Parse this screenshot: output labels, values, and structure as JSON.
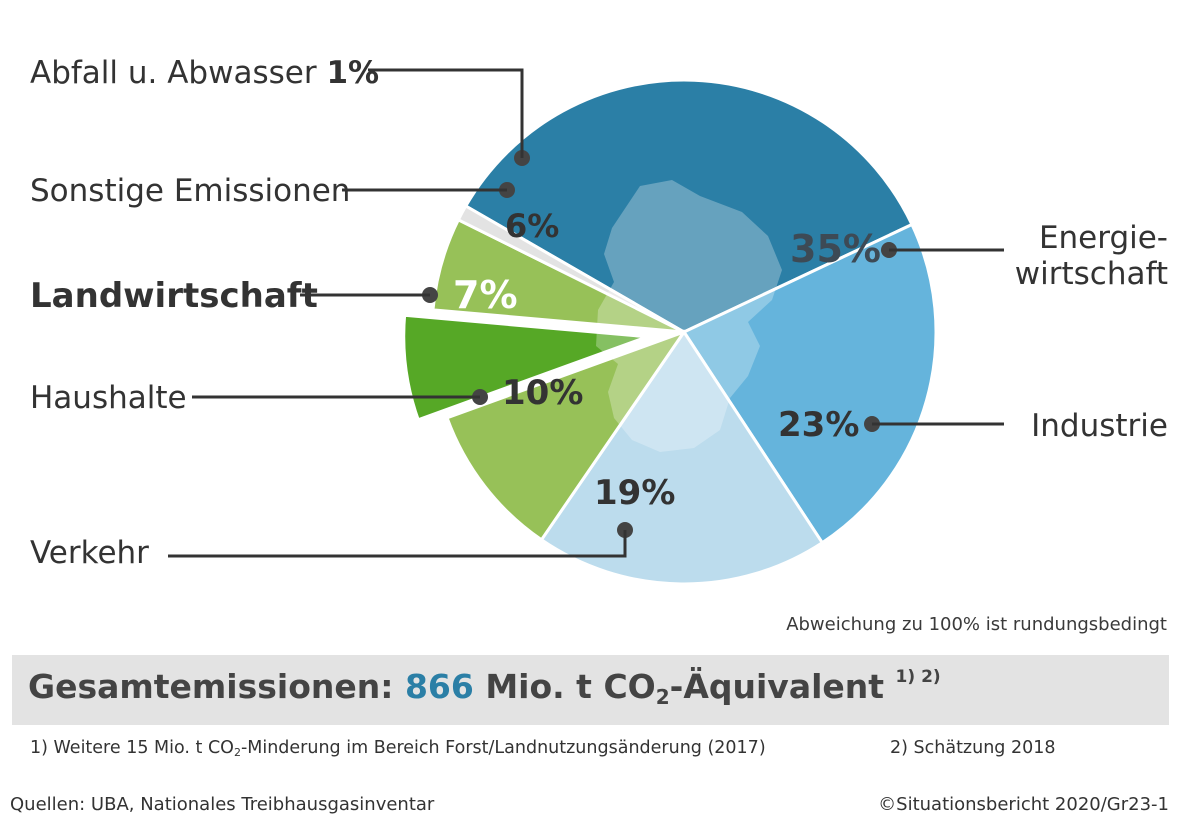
{
  "chart_data": {
    "type": "pie",
    "title": "",
    "categories": [
      "Energiewirtschaft",
      "Industrie",
      "Verkehr",
      "Haushalte",
      "Landwirtschaft",
      "Sonstige Emissionen",
      "Abfall u. Abwasser"
    ],
    "values": [
      35,
      23,
      19,
      10,
      7,
      6,
      1
    ],
    "value_labels": [
      "35%",
      "23%",
      "19%",
      "10%",
      "7%",
      "6%",
      "1%"
    ],
    "highlighted": "Landwirtschaft",
    "colors": {
      "Energiewirtschaft": "#2b7fa6",
      "Industrie": "#65b4dc",
      "Verkehr": "#bcdced",
      "Haushalte": "#97c158",
      "Landwirtschaft": "#56a826",
      "Sonstige Emissionen": "#97c158",
      "Abfall u. Abwasser": "#e3e3e3"
    },
    "legend": "none"
  },
  "labels": {
    "energie_1": "Energie-",
    "energie_2": "wirtschaft",
    "industrie": "Industrie",
    "verkehr": "Verkehr",
    "haushalte": "Haushalte",
    "landwirtschaft": "Landwirtschaft",
    "sonstige": "Sonstige Emissionen",
    "abfall": "Abfall u. Abwasser"
  },
  "note_rounding": "Abweichung zu 100% ist rundungsbedingt",
  "banner": {
    "prefix": "Gesamtemissionen: ",
    "value": "866",
    "unit_a": " Mio. t CO",
    "unit_sub": "2",
    "unit_b": "-Äquivalent ",
    "refs": "1) 2)"
  },
  "footnote1": {
    "a": "1) Weitere 15 Mio. t CO",
    "sub": "2",
    "b": "-Minderung im Bereich Forst/Landnutzungsänderung (2017)"
  },
  "footnote2": "2) Schätzung 2018",
  "sources": "Quellen: UBA, Nationales Treibhausgasinventar",
  "copyright": "©Situationsbericht 2020/Gr23-1"
}
